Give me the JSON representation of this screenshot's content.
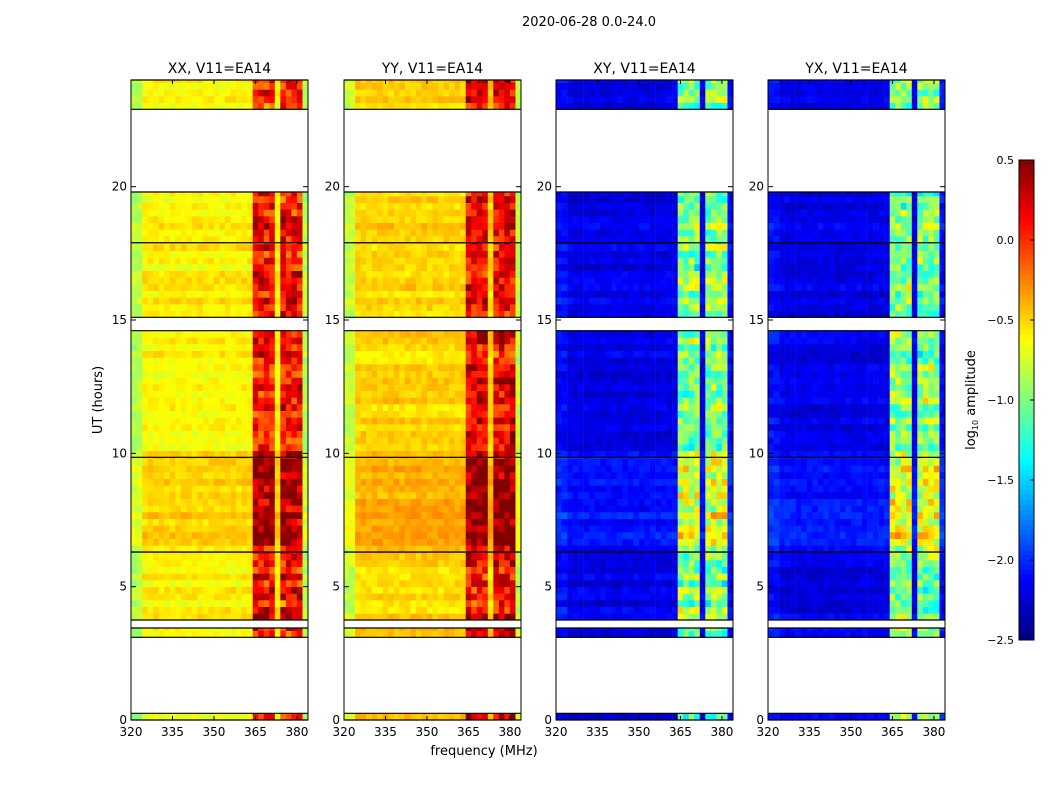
{
  "chart_data": {
    "type": "heatmap",
    "title": "2020-06-28 0.0-24.0",
    "xlabel": "frequency (MHz)",
    "ylabel": "UT (hours)",
    "xlim": [
      320,
      384
    ],
    "ylim": [
      0,
      24
    ],
    "xticks": [
      "320",
      "335",
      "350",
      "365",
      "380"
    ],
    "yticks": [
      "0",
      "5",
      "10",
      "15",
      "20"
    ],
    "colorbar": {
      "label": "log10 amplitude",
      "label_main": "log",
      "label_sub": "10",
      "label_rest": " amplitude",
      "range": [
        -2.5,
        0.5
      ],
      "ticks": [
        "0.5",
        "0.0",
        "−0.5",
        "−1.0",
        "−1.5",
        "−2.0",
        "−2.5"
      ],
      "colormap": "jet"
    },
    "time_blocks_hours": [
      [
        0.0,
        0.25
      ],
      [
        3.1,
        3.45
      ],
      [
        3.75,
        6.3
      ],
      [
        6.3,
        9.85
      ],
      [
        9.85,
        14.6
      ],
      [
        15.1,
        17.9
      ],
      [
        17.9,
        19.8
      ],
      [
        22.9,
        24.0
      ]
    ],
    "rfi_bands_mhz": [
      [
        363,
        367.5
      ],
      [
        368.5,
        372.5
      ],
      [
        373.5,
        377.5
      ],
      [
        378.5,
        381.5
      ]
    ],
    "panels": [
      {
        "title": "XX, V11=EA14",
        "background_level": -0.6,
        "rfi_level": 0.1,
        "edge_level": -0.85
      },
      {
        "title": "YY, V11=EA14",
        "background_level": -0.5,
        "rfi_level": 0.15,
        "edge_level": -0.8
      },
      {
        "title": "XY, V11=EA14",
        "background_level": -2.2,
        "rfi_level": -1.0,
        "edge_level": -2.1
      },
      {
        "title": "YX, V11=EA14",
        "background_level": -2.2,
        "rfi_level": -1.0,
        "edge_level": -2.1
      }
    ]
  }
}
